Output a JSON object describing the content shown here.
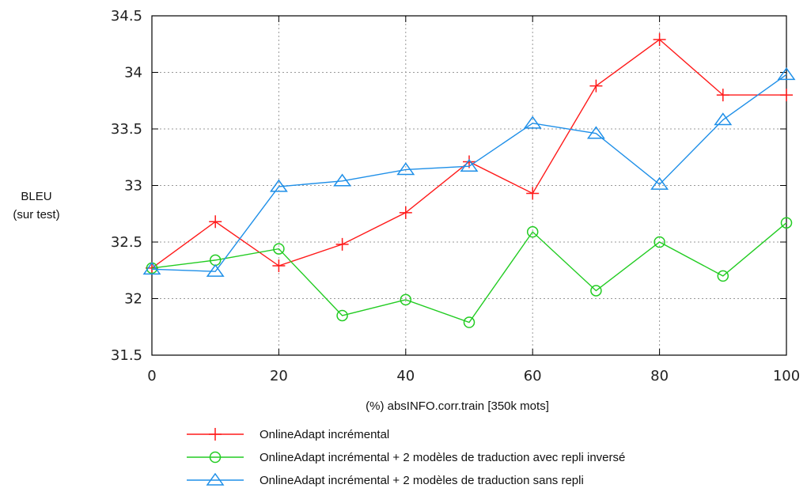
{
  "chart_data": {
    "type": "line",
    "title": "",
    "xlabel": "(%) absINFO.corr.train [350k mots]",
    "ylabel": [
      "BLEU",
      "(sur test)"
    ],
    "xlim": [
      0,
      100
    ],
    "ylim": [
      31.5,
      34.5
    ],
    "x_ticks": [
      0,
      20,
      40,
      60,
      80,
      100
    ],
    "y_ticks": [
      31.5,
      32,
      32.5,
      33,
      33.5,
      34,
      34.5
    ],
    "grid": true,
    "legend_position": "bottom",
    "x": [
      0,
      10,
      20,
      30,
      40,
      50,
      60,
      70,
      80,
      90,
      100
    ],
    "series": [
      {
        "name": "OnlineAdapt incrémental",
        "color": "#ff1a1a",
        "marker": "plus",
        "values": [
          32.27,
          32.68,
          32.29,
          32.48,
          32.76,
          33.21,
          32.93,
          33.88,
          34.29,
          33.8,
          33.8
        ]
      },
      {
        "name": "OnlineAdapt incrémental + 2 modèles de traduction avec repli inversé",
        "color": "#22cc22",
        "marker": "circle",
        "values": [
          32.27,
          32.34,
          32.44,
          31.85,
          31.99,
          31.79,
          32.59,
          32.07,
          32.5,
          32.2,
          32.67
        ]
      },
      {
        "name": "OnlineAdapt incrémental + 2 modèles de traduction sans repli",
        "color": "#1e8fe8",
        "marker": "triangle",
        "values": [
          32.26,
          32.24,
          32.99,
          33.04,
          33.14,
          33.17,
          33.55,
          33.46,
          33.01,
          33.58,
          33.98
        ]
      }
    ]
  }
}
